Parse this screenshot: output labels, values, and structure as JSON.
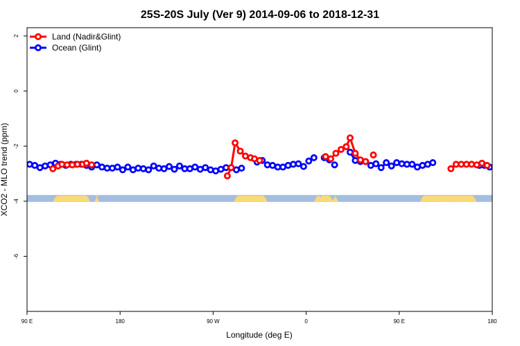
{
  "chart_data": {
    "type": "line",
    "title": "25S-20S July (Ver 9)   2014-09-06 to 2018-12-31",
    "xlabel": "Longitude (deg E)",
    "ylabel": "XCO2 - MLO trend (ppm)",
    "xlim": [
      90,
      450
    ],
    "ylim": [
      -8,
      2.3
    ],
    "x_ticks": [
      90,
      162,
      234,
      306,
      378,
      450
    ],
    "x_tick_labels": [
      "90 E",
      "180",
      "90 W",
      "0",
      "90 E",
      "180"
    ],
    "y_ticks": [
      2,
      0,
      -2,
      -4,
      -6
    ],
    "y_tick_labels": [
      "2",
      "0",
      "-2",
      "-4",
      "-6"
    ],
    "grid": false,
    "legend_position": "top-left",
    "land_band": {
      "y": -3.9,
      "ocean_color": "#a4bde0",
      "land_color": "#f9d978",
      "land_ranges": [
        [
          110,
          139
        ],
        [
          142,
          146
        ],
        [
          250,
          276
        ],
        [
          312,
          319
        ],
        [
          315,
          327
        ],
        [
          326,
          331
        ],
        [
          394,
          419
        ],
        [
          410,
          435
        ],
        [
          415,
          438
        ]
      ]
    },
    "series": [
      {
        "name": "Land (Nadir&Glint)",
        "color": "#ff0000",
        "segments": [
          [
            [
              110,
              -2.82
            ],
            [
              114,
              -2.72
            ],
            [
              117,
              -2.66
            ],
            [
              121,
              -2.68
            ],
            [
              125,
              -2.68
            ],
            [
              129,
              -2.66
            ],
            [
              133,
              -2.66
            ],
            [
              136,
              -2.62
            ],
            [
              140,
              -2.68
            ]
          ],
          [
            [
              245,
              -3.08
            ],
            [
              248,
              -2.78
            ],
            [
              251,
              -1.88
            ],
            [
              255,
              -2.18
            ],
            [
              259,
              -2.36
            ],
            [
              263,
              -2.42
            ],
            [
              266,
              -2.46
            ],
            [
              270,
              -2.52
            ]
          ],
          [
            [
              321,
              -2.38
            ],
            [
              325,
              -2.46
            ],
            [
              329,
              -2.26
            ],
            [
              333,
              -2.12
            ],
            [
              337,
              -2.02
            ],
            [
              340,
              -1.7
            ],
            [
              344,
              -2.26
            ],
            [
              348,
              -2.5
            ],
            [
              352,
              -2.56
            ]
          ],
          [
            [
              358,
              -2.32
            ]
          ],
          [
            [
              418,
              -2.82
            ],
            [
              422,
              -2.66
            ],
            [
              426,
              -2.66
            ],
            [
              430,
              -2.66
            ],
            [
              434,
              -2.66
            ],
            [
              438,
              -2.68
            ],
            [
              442,
              -2.62
            ],
            [
              446,
              -2.7
            ]
          ]
        ]
      },
      {
        "name": "Ocean (Glint)",
        "color": "#0000ff",
        "points": [
          [
            92,
            -2.66
          ],
          [
            96,
            -2.7
          ],
          [
            100,
            -2.78
          ],
          [
            104,
            -2.72
          ],
          [
            108,
            -2.68
          ],
          [
            112,
            -2.62
          ],
          [
            116,
            -2.66
          ],
          [
            120,
            -2.7
          ],
          [
            124,
            -2.66
          ],
          [
            128,
            -2.66
          ],
          [
            132,
            -2.66
          ],
          [
            136,
            -2.7
          ],
          [
            140,
            -2.76
          ],
          [
            144,
            -2.68
          ],
          [
            148,
            -2.76
          ],
          [
            152,
            -2.8
          ],
          [
            156,
            -2.8
          ],
          [
            160,
            -2.76
          ],
          [
            164,
            -2.86
          ],
          [
            168,
            -2.76
          ],
          [
            172,
            -2.86
          ],
          [
            176,
            -2.8
          ],
          [
            180,
            -2.82
          ],
          [
            184,
            -2.86
          ],
          [
            188,
            -2.72
          ],
          [
            192,
            -2.8
          ],
          [
            196,
            -2.82
          ],
          [
            200,
            -2.74
          ],
          [
            204,
            -2.84
          ],
          [
            208,
            -2.72
          ],
          [
            212,
            -2.82
          ],
          [
            216,
            -2.82
          ],
          [
            220,
            -2.76
          ],
          [
            224,
            -2.84
          ],
          [
            228,
            -2.78
          ],
          [
            232,
            -2.86
          ],
          [
            236,
            -2.9
          ],
          [
            240,
            -2.84
          ],
          [
            244,
            -2.78
          ],
          [
            248,
            -2.78
          ],
          [
            252,
            -2.86
          ],
          [
            256,
            -2.8
          ],
          [
            268,
            -2.58
          ],
          [
            272,
            -2.52
          ],
          [
            276,
            -2.68
          ],
          [
            280,
            -2.7
          ],
          [
            284,
            -2.76
          ],
          [
            288,
            -2.76
          ],
          [
            292,
            -2.7
          ],
          [
            296,
            -2.66
          ],
          [
            300,
            -2.64
          ],
          [
            304,
            -2.74
          ],
          [
            308,
            -2.54
          ],
          [
            312,
            -2.42
          ],
          [
            320,
            -2.42
          ],
          [
            324,
            -2.5
          ],
          [
            328,
            -2.68
          ],
          [
            340,
            -2.22
          ],
          [
            344,
            -2.52
          ],
          [
            348,
            -2.56
          ],
          [
            352,
            -2.56
          ],
          [
            356,
            -2.7
          ],
          [
            360,
            -2.64
          ],
          [
            364,
            -2.78
          ],
          [
            368,
            -2.6
          ],
          [
            372,
            -2.72
          ],
          [
            376,
            -2.6
          ],
          [
            380,
            -2.64
          ],
          [
            384,
            -2.66
          ],
          [
            388,
            -2.66
          ],
          [
            392,
            -2.76
          ],
          [
            396,
            -2.7
          ],
          [
            400,
            -2.66
          ],
          [
            404,
            -2.6
          ],
          [
            440,
            -2.7
          ],
          [
            444,
            -2.7
          ],
          [
            448,
            -2.76
          ],
          [
            452,
            -2.76
          ],
          [
            456,
            -2.78
          ],
          [
            460,
            -2.74
          ],
          [
            464,
            -2.88
          ]
        ],
        "lines": [
          [
            [
              92,
              -2.66
            ],
            [
              96,
              -2.7
            ],
            [
              100,
              -2.78
            ],
            [
              104,
              -2.72
            ],
            [
              108,
              -2.68
            ],
            [
              112,
              -2.62
            ],
            [
              116,
              -2.66
            ],
            [
              120,
              -2.7
            ],
            [
              124,
              -2.66
            ],
            [
              128,
              -2.66
            ],
            [
              132,
              -2.66
            ],
            [
              136,
              -2.7
            ],
            [
              140,
              -2.76
            ]
          ],
          [
            [
              268,
              -2.58
            ],
            [
              272,
              -2.52
            ]
          ],
          [
            [
              308,
              -2.54
            ],
            [
              312,
              -2.42
            ]
          ],
          [
            [
              340,
              -2.22
            ],
            [
              344,
              -2.52
            ],
            [
              348,
              -2.56
            ],
            [
              352,
              -2.56
            ],
            [
              356,
              -2.7
            ],
            [
              360,
              -2.64
            ],
            [
              364,
              -2.78
            ],
            [
              368,
              -2.6
            ],
            [
              372,
              -2.72
            ],
            [
              376,
              -2.6
            ],
            [
              380,
              -2.64
            ],
            [
              384,
              -2.66
            ],
            [
              388,
              -2.66
            ],
            [
              392,
              -2.76
            ],
            [
              396,
              -2.7
            ],
            [
              400,
              -2.66
            ],
            [
              404,
              -2.6
            ]
          ]
        ]
      }
    ]
  }
}
